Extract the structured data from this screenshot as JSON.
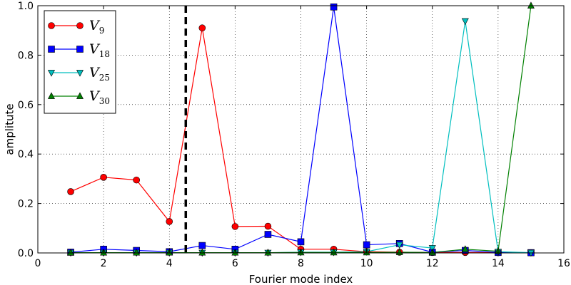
{
  "chart_data": {
    "type": "line",
    "xlabel": "Fourier mode index",
    "ylabel": "amplitute",
    "xlim": [
      0,
      16
    ],
    "ylim": [
      0,
      1.0
    ],
    "xticks": [
      0,
      2,
      4,
      6,
      8,
      10,
      12,
      14,
      16
    ],
    "yticks": [
      0.0,
      0.2,
      0.4,
      0.6,
      0.8,
      1.0
    ],
    "xtick_labels": [
      "0",
      "2",
      "4",
      "6",
      "8",
      "10",
      "12",
      "14",
      "16"
    ],
    "ytick_labels": [
      "0.0",
      "0.2",
      "0.4",
      "0.6",
      "0.8",
      "1.0"
    ],
    "grid": true,
    "legend_position": "top-left",
    "vertical_line": {
      "x": 4.5,
      "style": "dashed",
      "color": "#000000"
    },
    "x": [
      1,
      2,
      3,
      4,
      5,
      6,
      7,
      8,
      9,
      10,
      11,
      12,
      13,
      14,
      15
    ],
    "series": [
      {
        "name": "V",
        "subscript": "9",
        "color": "#ff0000",
        "marker": "circle",
        "values": [
          0.248,
          0.306,
          0.295,
          0.127,
          0.91,
          0.107,
          0.108,
          0.015,
          0.015,
          0.005,
          0.003,
          0.002,
          0.002,
          0.001,
          0.001
        ]
      },
      {
        "name": "V",
        "subscript": "18",
        "color": "#0000ff",
        "marker": "square",
        "values": [
          0.003,
          0.015,
          0.01,
          0.005,
          0.03,
          0.015,
          0.075,
          0.045,
          0.995,
          0.033,
          0.038,
          0.003,
          0.01,
          0.002,
          0.001
        ]
      },
      {
        "name": "V",
        "subscript": "25",
        "color": "#00bfbf",
        "marker": "triangle-down",
        "values": [
          0.001,
          0.001,
          0.001,
          0.001,
          0.001,
          0.001,
          0.001,
          0.003,
          0.003,
          0.005,
          0.033,
          0.02,
          0.938,
          0.005,
          0.001
        ]
      },
      {
        "name": "V",
        "subscript": "30",
        "color": "#008000",
        "marker": "triangle-up",
        "values": [
          0.001,
          0.001,
          0.001,
          0.001,
          0.001,
          0.001,
          0.001,
          0.002,
          0.002,
          0.002,
          0.003,
          0.002,
          0.015,
          0.007,
          1.0
        ]
      }
    ]
  }
}
